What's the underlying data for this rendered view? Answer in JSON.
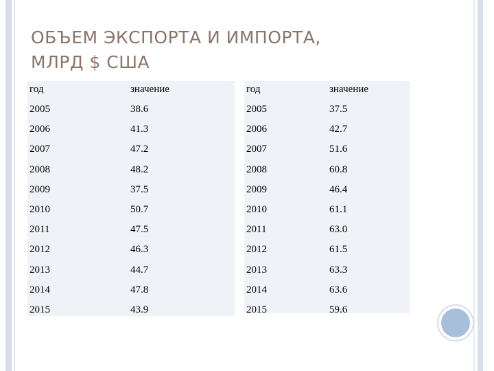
{
  "title": {
    "line1": "ОБЪЕМ ЭКСПОРТА И ИМПОРТА,",
    "line2": "МЛРД $ США"
  },
  "left_table": {
    "headers": [
      "год",
      "значение"
    ],
    "rows": [
      [
        "2005",
        "38.6"
      ],
      [
        "2006",
        "41.3"
      ],
      [
        "2007",
        "47.2"
      ],
      [
        "2008",
        "48.2"
      ],
      [
        "2009",
        "37.5"
      ],
      [
        "2010",
        "50.7"
      ],
      [
        "2011",
        "47.5"
      ],
      [
        "2012",
        "46.3"
      ],
      [
        "2013",
        "44.7"
      ],
      [
        "2014",
        "47.8"
      ],
      [
        "2015",
        "43.9"
      ]
    ]
  },
  "right_table": {
    "headers": [
      "год",
      "значение"
    ],
    "rows": [
      [
        "2005",
        "37.5"
      ],
      [
        "2006",
        "42.7"
      ],
      [
        "2007",
        "51.6"
      ],
      [
        "2008",
        "60.8"
      ],
      [
        "2009",
        "46.4"
      ],
      [
        "2010",
        "61.1"
      ],
      [
        "2011",
        "63.0"
      ],
      [
        "2012",
        "61.5"
      ],
      [
        "2013",
        "63.3"
      ],
      [
        "2014",
        "63.6"
      ],
      [
        "2015",
        "59.6"
      ]
    ]
  }
}
